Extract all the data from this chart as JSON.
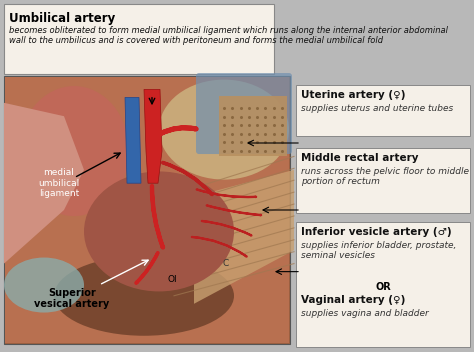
{
  "fig_bg": "#b8b8b8",
  "top_box": {
    "title": "Umbilical artery",
    "body": "becomes obliterated to form medial umbilical ligament which runs along the internal anterior abdominal\nwall to the umbilicus and is covered with peritoneum and forms the medial umbilical fold",
    "facecolor": "#f5f0e8",
    "edgecolor": "#888888"
  },
  "right_boxes": [
    {
      "label": "Uterine artery (♀)",
      "desc": "supplies uterus and uterine tubes",
      "has_sub": false
    },
    {
      "label": "Middle rectal artery",
      "desc": "runs across the pelvic floor to middle\nportion of rectum",
      "has_sub": false
    },
    {
      "label": "Inferior vesicle artery (♂)",
      "desc": "supplies inferior bladder, prostate,\nseminal vesicles",
      "has_sub": true,
      "or_text": "OR",
      "label2": "Vaginal artery (♀)",
      "desc2": "supplies vagina and bladder"
    }
  ],
  "box_facecolor": "#f5f0e8",
  "box_edgecolor": "#888888",
  "label_fontsize": 7.5,
  "desc_fontsize": 6.5
}
